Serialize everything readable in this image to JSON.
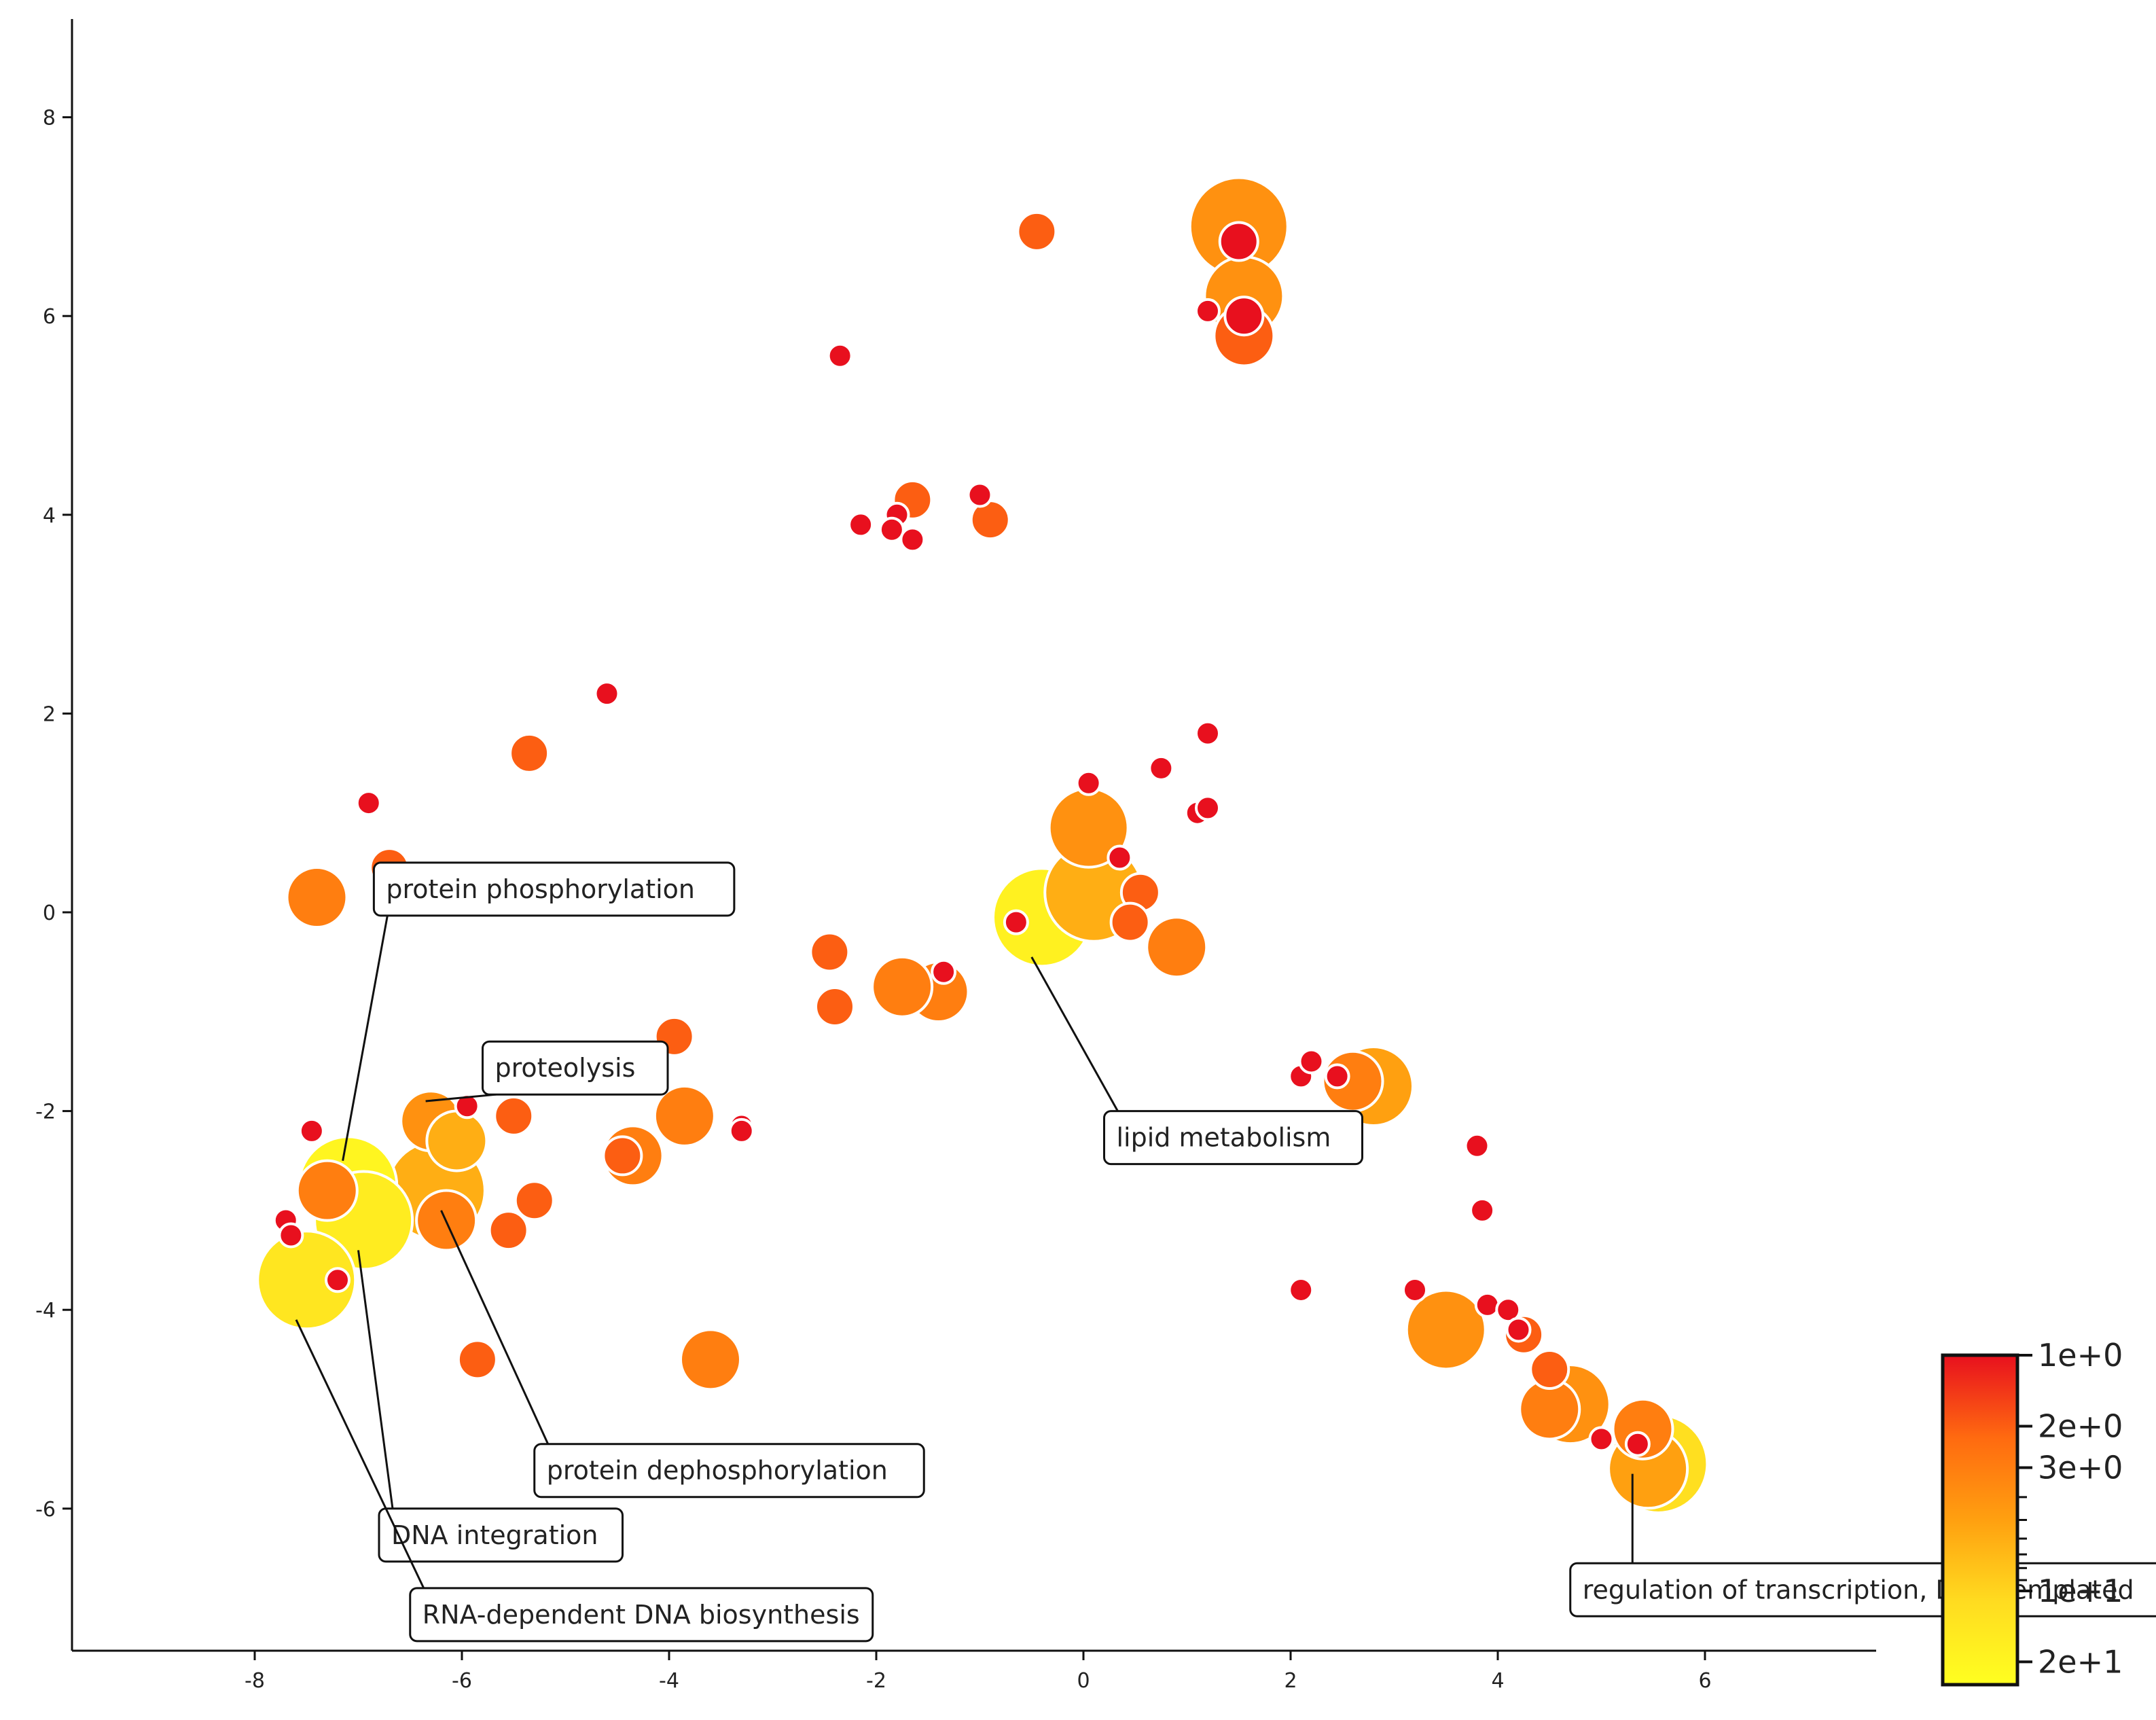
{
  "chart_data": {
    "type": "scatter",
    "title": "",
    "xlabel": "",
    "ylabel": "",
    "xlim": [
      -10.3,
      7.6
    ],
    "ylim": [
      -7.5,
      9.0
    ],
    "x_ticks": [
      -8,
      -6,
      -4,
      -2,
      0,
      2,
      4,
      6
    ],
    "y_ticks": [
      8,
      6,
      4,
      2,
      0,
      -2,
      -4,
      -6
    ],
    "tick_labels_x": [
      "-8",
      "-6",
      "-4",
      "-2",
      "0",
      "2",
      "4",
      "6"
    ],
    "tick_labels_y": [
      "8",
      "6",
      "4",
      "2",
      "0",
      "-2",
      "-4",
      "-6"
    ],
    "color_scale": {
      "label_top": "1e+0",
      "labels": [
        "1e+0",
        "2e+0",
        "3e+0",
        "1e+1",
        "2e+1"
      ],
      "domain": [
        1,
        25
      ],
      "colors": [
        "#e8101e",
        "#ff6a10",
        "#ffa010",
        "#ffdc20",
        "#ffff20"
      ]
    },
    "points": [
      {
        "x": 1.5,
        "y": 6.9,
        "size": 5,
        "value": 4
      },
      {
        "x": 1.5,
        "y": 6.75,
        "size": 2,
        "value": 1
      },
      {
        "x": 1.55,
        "y": 6.2,
        "size": 4,
        "value": 4
      },
      {
        "x": 1.55,
        "y": 5.8,
        "size": 3,
        "value": 2
      },
      {
        "x": 1.55,
        "y": 6.0,
        "size": 2,
        "value": 1
      },
      {
        "x": 1.2,
        "y": 6.05,
        "size": 1,
        "value": 1
      },
      {
        "x": -0.45,
        "y": 6.85,
        "size": 2,
        "value": 2
      },
      {
        "x": -2.35,
        "y": 5.6,
        "size": 1,
        "value": 1
      },
      {
        "x": -1.65,
        "y": 4.15,
        "size": 2,
        "value": 2
      },
      {
        "x": -1.8,
        "y": 4.0,
        "size": 1,
        "value": 1
      },
      {
        "x": -2.15,
        "y": 3.9,
        "size": 1,
        "value": 1
      },
      {
        "x": -1.85,
        "y": 3.85,
        "size": 1,
        "value": 1
      },
      {
        "x": -1.65,
        "y": 3.75,
        "size": 1,
        "value": 1
      },
      {
        "x": -1.0,
        "y": 4.2,
        "size": 1,
        "value": 1
      },
      {
        "x": -0.9,
        "y": 3.95,
        "size": 2,
        "value": 2
      },
      {
        "x": -4.6,
        "y": 2.2,
        "size": 1,
        "value": 1
      },
      {
        "x": -5.35,
        "y": 1.6,
        "size": 2,
        "value": 2
      },
      {
        "x": -6.9,
        "y": 1.1,
        "size": 1,
        "value": 1
      },
      {
        "x": -6.7,
        "y": 0.45,
        "size": 2,
        "value": 2
      },
      {
        "x": -7.4,
        "y": 0.15,
        "size": 3,
        "value": 3
      },
      {
        "x": 1.2,
        "y": 1.8,
        "size": 1,
        "value": 1
      },
      {
        "x": 0.75,
        "y": 1.45,
        "size": 1,
        "value": 1
      },
      {
        "x": 1.1,
        "y": 1.0,
        "size": 1,
        "value": 1
      },
      {
        "x": 1.2,
        "y": 1.05,
        "size": 1,
        "value": 1
      },
      {
        "x": 0.05,
        "y": 1.3,
        "size": 1,
        "value": 1
      },
      {
        "x": 0.05,
        "y": 0.85,
        "size": 4,
        "value": 4
      },
      {
        "x": 0.35,
        "y": 0.55,
        "size": 1,
        "value": 1
      },
      {
        "x": 0.55,
        "y": 0.2,
        "size": 2,
        "value": 2
      },
      {
        "x": 0.45,
        "y": -0.1,
        "size": 2,
        "value": 2
      },
      {
        "x": 0.9,
        "y": -0.35,
        "size": 3,
        "value": 3
      },
      {
        "x": -0.4,
        "y": -0.05,
        "size": 5,
        "value": 18
      },
      {
        "x": 0.1,
        "y": 0.2,
        "size": 5,
        "value": 6
      },
      {
        "x": -0.65,
        "y": -0.1,
        "size": 1,
        "value": 1
      },
      {
        "x": -2.45,
        "y": -0.4,
        "size": 2,
        "value": 2
      },
      {
        "x": -2.4,
        "y": -0.95,
        "size": 2,
        "value": 2
      },
      {
        "x": -1.4,
        "y": -0.8,
        "size": 3,
        "value": 3
      },
      {
        "x": -1.75,
        "y": -0.75,
        "size": 3,
        "value": 3
      },
      {
        "x": -1.35,
        "y": -0.6,
        "size": 1,
        "value": 1
      },
      {
        "x": -3.95,
        "y": -1.25,
        "size": 2,
        "value": 2
      },
      {
        "x": -3.85,
        "y": -2.05,
        "size": 3,
        "value": 3
      },
      {
        "x": -4.35,
        "y": -2.45,
        "size": 3,
        "value": 3
      },
      {
        "x": -4.45,
        "y": -2.45,
        "size": 2,
        "value": 2
      },
      {
        "x": -3.3,
        "y": -2.15,
        "size": 1,
        "value": 1
      },
      {
        "x": -3.3,
        "y": -2.2,
        "size": 1,
        "value": 1
      },
      {
        "x": -3.6,
        "y": -4.5,
        "size": 3,
        "value": 3
      },
      {
        "x": -5.85,
        "y": -4.5,
        "size": 2,
        "value": 2
      },
      {
        "x": -5.5,
        "y": -2.05,
        "size": 2,
        "value": 2
      },
      {
        "x": -5.95,
        "y": -1.95,
        "size": 1,
        "value": 1
      },
      {
        "x": -6.3,
        "y": -2.1,
        "size": 3,
        "value": 4
      },
      {
        "x": -6.05,
        "y": -2.3,
        "size": 3,
        "value": 6
      },
      {
        "x": -5.3,
        "y": -2.9,
        "size": 2,
        "value": 2
      },
      {
        "x": -5.55,
        "y": -3.2,
        "size": 2,
        "value": 2
      },
      {
        "x": -6.25,
        "y": -2.8,
        "size": 5,
        "value": 6
      },
      {
        "x": -6.15,
        "y": -3.1,
        "size": 3,
        "value": 3
      },
      {
        "x": -7.1,
        "y": -2.75,
        "size": 5,
        "value": 20
      },
      {
        "x": -7.3,
        "y": -2.8,
        "size": 3,
        "value": 3
      },
      {
        "x": -6.95,
        "y": -3.1,
        "size": 5,
        "value": 16
      },
      {
        "x": -7.5,
        "y": -3.7,
        "size": 5,
        "value": 14
      },
      {
        "x": -7.7,
        "y": -3.1,
        "size": 1,
        "value": 1
      },
      {
        "x": -7.65,
        "y": -3.25,
        "size": 1,
        "value": 1
      },
      {
        "x": -7.45,
        "y": -2.2,
        "size": 1,
        "value": 1
      },
      {
        "x": -7.2,
        "y": -3.7,
        "size": 1,
        "value": 1
      },
      {
        "x": 2.1,
        "y": -1.65,
        "size": 1,
        "value": 1
      },
      {
        "x": 2.2,
        "y": -1.5,
        "size": 1,
        "value": 1
      },
      {
        "x": 2.6,
        "y": -1.7,
        "size": 3,
        "value": 3
      },
      {
        "x": 2.8,
        "y": -1.75,
        "size": 4,
        "value": 5
      },
      {
        "x": 2.45,
        "y": -1.65,
        "size": 1,
        "value": 1
      },
      {
        "x": 3.8,
        "y": -2.35,
        "size": 1,
        "value": 1
      },
      {
        "x": 3.85,
        "y": -3.0,
        "size": 1,
        "value": 1
      },
      {
        "x": 2.1,
        "y": -3.8,
        "size": 1,
        "value": 1
      },
      {
        "x": 3.2,
        "y": -3.8,
        "size": 1,
        "value": 1
      },
      {
        "x": 3.5,
        "y": -4.2,
        "size": 4,
        "value": 4
      },
      {
        "x": 3.9,
        "y": -3.95,
        "size": 1,
        "value": 1
      },
      {
        "x": 4.1,
        "y": -4.0,
        "size": 1,
        "value": 1
      },
      {
        "x": 4.25,
        "y": -4.25,
        "size": 2,
        "value": 2
      },
      {
        "x": 4.2,
        "y": -4.2,
        "size": 1,
        "value": 1
      },
      {
        "x": 4.5,
        "y": -4.6,
        "size": 2,
        "value": 2
      },
      {
        "x": 4.5,
        "y": -5.0,
        "size": 3,
        "value": 3
      },
      {
        "x": 4.7,
        "y": -4.95,
        "size": 4,
        "value": 4
      },
      {
        "x": 5.0,
        "y": -5.3,
        "size": 1,
        "value": 1
      },
      {
        "x": 5.4,
        "y": -5.2,
        "size": 3,
        "value": 3
      },
      {
        "x": 5.55,
        "y": -5.55,
        "size": 5,
        "value": 12
      },
      {
        "x": 5.45,
        "y": -5.6,
        "size": 4,
        "value": 5
      },
      {
        "x": 5.35,
        "y": -5.35,
        "size": 1,
        "value": 1
      }
    ],
    "annotations": [
      {
        "label": "protein phosphorylation",
        "x": -7.15,
        "y": -2.5,
        "lx": -6.85,
        "ly": 0.5
      },
      {
        "label": "proteolysis",
        "x": -6.35,
        "y": -1.9,
        "lx": -5.8,
        "ly": -1.3
      },
      {
        "label": "lipid metabolism",
        "x": -0.5,
        "y": -0.45,
        "lx": 0.2,
        "ly": -2.0
      },
      {
        "label": "protein dephosphorylation",
        "x": -6.2,
        "y": -3.0,
        "lx": -5.3,
        "ly": -5.35
      },
      {
        "label": "DNA integration",
        "x": -7.0,
        "y": -3.4,
        "lx": -6.8,
        "ly": -6.0
      },
      {
        "label": "RNA-dependent DNA biosynthesis",
        "x": -7.6,
        "y": -4.1,
        "lx": -6.5,
        "ly": -6.8
      },
      {
        "label": "regulation of transcription, DNA-templated",
        "x": 5.3,
        "y": -5.65,
        "lx": 4.7,
        "ly": -6.55
      }
    ]
  }
}
